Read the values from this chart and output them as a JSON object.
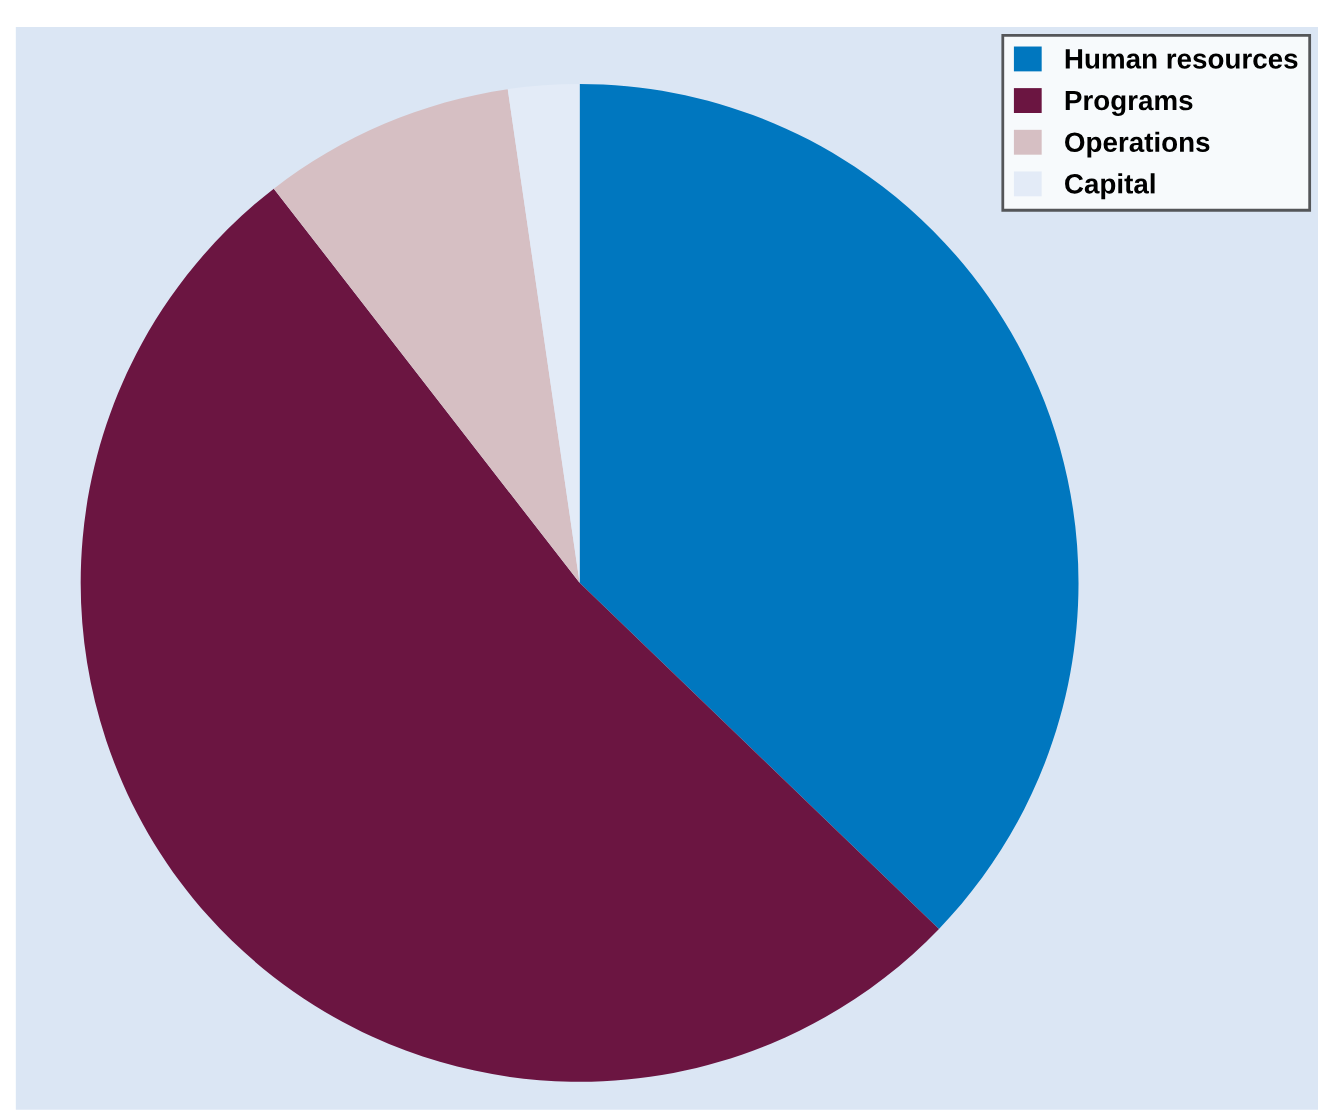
{
  "chart_data": {
    "type": "pie",
    "categories": [
      "Human resources",
      "Programs",
      "Operations",
      "Capital"
    ],
    "values": [
      37.2,
      52.3,
      8.2,
      2.3
    ],
    "colors": [
      "#0077bf",
      "#6b1541",
      "#d6bfc3",
      "#e3ebf7"
    ],
    "legend": "top right"
  }
}
